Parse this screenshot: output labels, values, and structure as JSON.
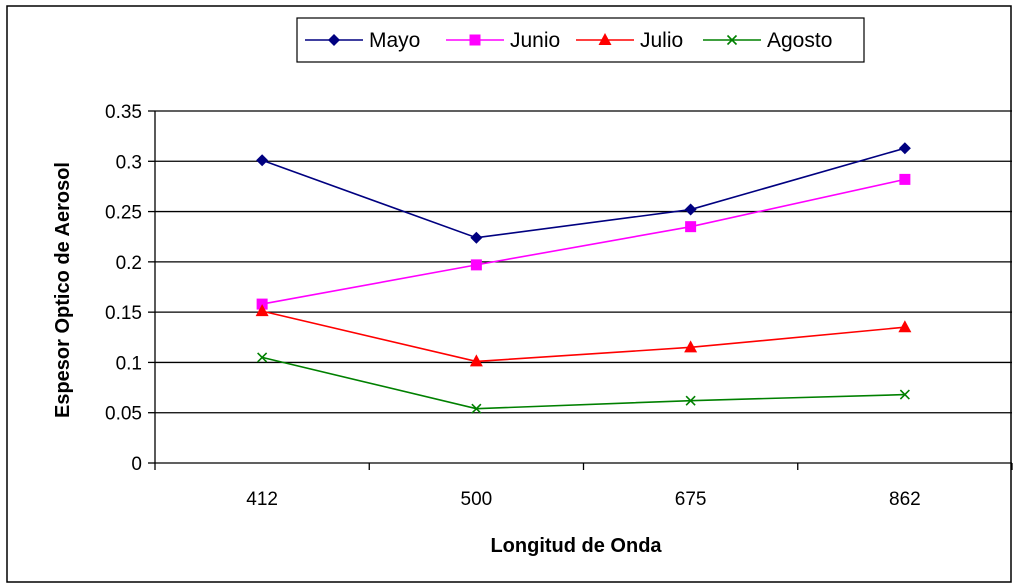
{
  "chart_data": {
    "type": "line",
    "categories": [
      "412",
      "500",
      "675",
      "862"
    ],
    "series": [
      {
        "name": "Mayo",
        "color": "#000080",
        "marker": "diamond",
        "values": [
          0.301,
          0.224,
          0.252,
          0.313
        ]
      },
      {
        "name": "Junio",
        "color": "#ff00ff",
        "marker": "square",
        "values": [
          0.158,
          0.197,
          0.235,
          0.282
        ]
      },
      {
        "name": "Julio",
        "color": "#ff0000",
        "marker": "triangle",
        "values": [
          0.151,
          0.101,
          0.115,
          0.135
        ]
      },
      {
        "name": "Agosto",
        "color": "#008000",
        "marker": "x",
        "values": [
          0.105,
          0.054,
          0.062,
          0.068
        ]
      }
    ],
    "xlabel": "Longitud de Onda",
    "ylabel": "Espesor Optico de Aerosol",
    "ylim": [
      0,
      0.35
    ],
    "yticks": [
      "0",
      "0.05",
      "0.1",
      "0.15",
      "0.2",
      "0.25",
      "0.3",
      "0.35"
    ],
    "grid": "horizontal",
    "legend_position": "top"
  }
}
